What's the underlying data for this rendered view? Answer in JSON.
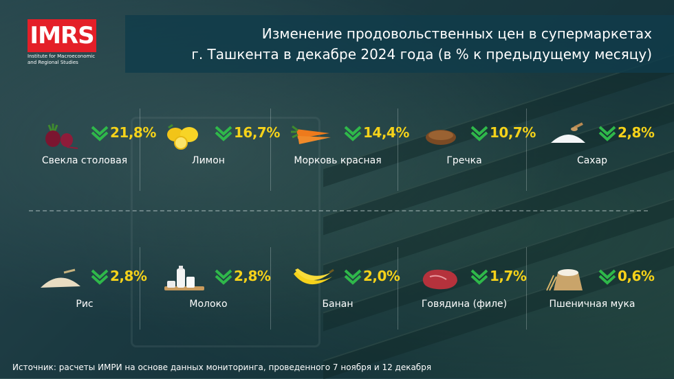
{
  "title_line1": "Изменение продовольственных цен в супермаркетах",
  "title_line2": "г. Ташкента в декабре 2024 года (в % к предыдущему месяцу)",
  "logo": {
    "text": "IMRS",
    "subtitle_line1": "Institute for Macroeconomic",
    "subtitle_line2": "and Regional Studies"
  },
  "colors": {
    "accent": "#f5d21a",
    "arrow": "#2fb84a",
    "logo_red": "#e41f28",
    "header": "#103c4a"
  },
  "items_top": [
    {
      "name": "Свекла столовая",
      "value": "21,8%",
      "icon": "beet-icon",
      "direction": "down"
    },
    {
      "name": "Лимон",
      "value": "16,7%",
      "icon": "lemon-icon",
      "direction": "down"
    },
    {
      "name": "Морковь красная",
      "value": "14,4%",
      "icon": "carrot-icon",
      "direction": "down"
    },
    {
      "name": "Гречка",
      "value": "10,7%",
      "icon": "buckwheat-icon",
      "direction": "down"
    },
    {
      "name": "Сахар",
      "value": "2,8%",
      "icon": "sugar-icon",
      "direction": "down"
    }
  ],
  "items_bottom": [
    {
      "name": "Рис",
      "value": "2,8%",
      "icon": "rice-icon",
      "direction": "down"
    },
    {
      "name": "Молоко",
      "value": "2,8%",
      "icon": "milk-icon",
      "direction": "down"
    },
    {
      "name": "Банан",
      "value": "2,0%",
      "icon": "banana-icon",
      "direction": "down"
    },
    {
      "name": "Говядина (филе)",
      "value": "1,7%",
      "icon": "beef-icon",
      "direction": "down"
    },
    {
      "name": "Пшеничная мука",
      "value": "0,6%",
      "icon": "flour-icon",
      "direction": "down"
    }
  ],
  "source": "Источник: расчеты ИМРИ на основе данных мониторинга, проведенного 7 ноября и 12 декабря"
}
